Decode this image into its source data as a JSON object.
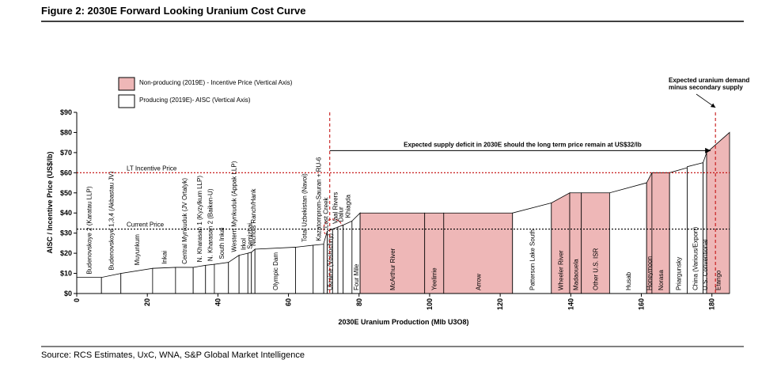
{
  "chart_data": {
    "type": "cost-curve",
    "title": "Figure 2: 2030E Forward Looking Uranium Cost Curve",
    "source": "Source: RCS Estimates, UxC, WNA, S&P Global Market Intelligence",
    "x_label": "2030E Uranium Production (Mlb U3O8)",
    "y_label": "AISC / Incentive Price (US$/lb)",
    "xlim": [
      0,
      185
    ],
    "xticks": [
      0,
      20,
      40,
      60,
      80,
      100,
      120,
      140,
      160,
      180
    ],
    "ylim": [
      0,
      90
    ],
    "yticks": [
      {
        "value": 0,
        "label": "$0"
      },
      {
        "value": 10,
        "label": "$10"
      },
      {
        "value": 20,
        "label": "$20"
      },
      {
        "value": 30,
        "label": "$30"
      },
      {
        "value": 40,
        "label": "$40"
      },
      {
        "value": 50,
        "label": "$50"
      },
      {
        "value": 60,
        "label": "$60"
      },
      {
        "value": 70,
        "label": "$70"
      },
      {
        "value": 80,
        "label": "$80"
      },
      {
        "value": 90,
        "label": "$90"
      }
    ],
    "legend": [
      {
        "name": "Non-producing (2019E) - Incentive Price (Vertical Axis)",
        "status": "non-producing",
        "color": "#eeb7b7"
      },
      {
        "name": "Producing (2019E)- AISC (Vertical Axis)",
        "status": "producing",
        "color": "#ffffff"
      }
    ],
    "segments": [
      {
        "label": "Budenovskoye 2 (Karatau LLP)",
        "x0": 0,
        "x1": 7,
        "y0": 8,
        "y1": 8,
        "status": "producing"
      },
      {
        "label": "Budenovskoye 1,3,4 (Akbastau JV)",
        "x0": 7,
        "x1": 12.5,
        "y0": 8,
        "y1": 10,
        "status": "producing"
      },
      {
        "label": "Muyunkum",
        "x0": 12.5,
        "x1": 21.5,
        "y0": 10,
        "y1": 12.5,
        "status": "producing"
      },
      {
        "label": "Inkai",
        "x0": 21.5,
        "x1": 28,
        "y0": 12.5,
        "y1": 13,
        "status": "producing"
      },
      {
        "label": "Central Mynkuduk (JV Ortalyk)",
        "x0": 28,
        "x1": 33,
        "y0": 13,
        "y1": 13,
        "status": "producing"
      },
      {
        "label": "N. Kharasan 1 (Kyzylkum LLP)",
        "x0": 33,
        "x1": 36.5,
        "y0": 13,
        "y1": 14,
        "status": "producing"
      },
      {
        "label": "N. Kharasan 2 (Baiken-U)",
        "x0": 36.5,
        "x1": 39,
        "y0": 14,
        "y1": 14.5,
        "status": "producing"
      },
      {
        "label": "South Inkai",
        "x0": 39,
        "x1": 43,
        "y0": 14.5,
        "y1": 15.5,
        "status": "producing"
      },
      {
        "label": "Western Mynkuduk (Appak LLP)",
        "x0": 43,
        "x1": 46,
        "y0": 15.5,
        "y1": 19,
        "status": "producing"
      },
      {
        "label": "Irkol",
        "x0": 46,
        "x1": 48.5,
        "y0": 19,
        "y1": 20,
        "status": "producing"
      },
      {
        "label": "Semizbai",
        "x0": 48.5,
        "x1": 49.5,
        "y0": 20,
        "y1": 20.5,
        "status": "producing"
      },
      {
        "label": "Nichols Ranch/Hank",
        "x0": 49.5,
        "x1": 50.5,
        "y0": 20.5,
        "y1": 22,
        "status": "producing"
      },
      {
        "label": "Olympic Dam",
        "x0": 50.5,
        "x1": 62,
        "y0": 22,
        "y1": 23,
        "status": "producing"
      },
      {
        "label": "Total Uzbekistan (Navoi)",
        "x0": 62,
        "x1": 67,
        "y0": 23,
        "y1": 24,
        "status": "producing"
      },
      {
        "label": "Kazatomprom-Sauran + RU-6",
        "x0": 67,
        "x1": 70,
        "y0": 24,
        "y1": 24.5,
        "status": "producing"
      },
      {
        "label": "Lost Creek",
        "x0": 70,
        "x1": 71,
        "y0": 25,
        "y1": 31,
        "status": "producing"
      },
      {
        "label": "Ukraine (Vostochny)",
        "x0": 71,
        "x1": 72.5,
        "y0": 31,
        "y1": 32,
        "status": "producing"
      },
      {
        "label": "Vaal Rivers",
        "x0": 72.5,
        "x1": 74,
        "y0": 32,
        "y1": 33,
        "status": "producing"
      },
      {
        "label": "Dalur",
        "x0": 74,
        "x1": 75.5,
        "y0": 33,
        "y1": 34,
        "status": "producing"
      },
      {
        "label": "Khiagda",
        "x0": 75.5,
        "x1": 78,
        "y0": 34,
        "y1": 36,
        "status": "producing"
      },
      {
        "label": "Four Mile",
        "x0": 78,
        "x1": 80.3,
        "y0": 36,
        "y1": 40,
        "status": "producing"
      },
      {
        "label": "McArthur River",
        "x0": 80.3,
        "x1": 98.6,
        "y0": 40,
        "y1": 40,
        "status": "non-producing"
      },
      {
        "label": "Yeelirrie",
        "x0": 98.6,
        "x1": 104,
        "y0": 40,
        "y1": 40,
        "status": "non-producing"
      },
      {
        "label": "Arrow",
        "x0": 104,
        "x1": 123.5,
        "y0": 40,
        "y1": 40,
        "status": "non-producing"
      },
      {
        "label": "Patterson Lake South",
        "x0": 123.5,
        "x1": 134.5,
        "y0": 40,
        "y1": 45,
        "status": "producing"
      },
      {
        "label": "Wheeler River",
        "x0": 134.5,
        "x1": 139.7,
        "y0": 45,
        "y1": 50,
        "status": "non-producing"
      },
      {
        "label": "Madaouela",
        "x0": 139.7,
        "x1": 143,
        "y0": 50,
        "y1": 50,
        "status": "non-producing"
      },
      {
        "label": "Other U.S. ISR",
        "x0": 143,
        "x1": 151,
        "y0": 50,
        "y1": 50,
        "status": "non-producing"
      },
      {
        "label": "Husab",
        "x0": 151,
        "x1": 161.5,
        "y0": 50,
        "y1": 55,
        "status": "producing"
      },
      {
        "label": "Honeymoon",
        "x0": 161.5,
        "x1": 163,
        "y0": 55,
        "y1": 60,
        "status": "non-producing"
      },
      {
        "label": "Norasa",
        "x0": 163,
        "x1": 168,
        "y0": 60,
        "y1": 60,
        "status": "non-producing"
      },
      {
        "label": "Priargunsky",
        "x0": 168,
        "x1": 173,
        "y0": 60,
        "y1": 62.5,
        "status": "producing"
      },
      {
        "label": "China (Various/Export)",
        "x0": 173,
        "x1": 177.5,
        "y0": 63,
        "y1": 65,
        "status": "producing"
      },
      {
        "label": "U.S. Conventional",
        "x0": 177.5,
        "x1": 178.5,
        "y0": 65,
        "y1": 70,
        "status": "producing"
      },
      {
        "label": "Etango",
        "x0": 178.5,
        "x1": 185,
        "y0": 70,
        "y1": 80,
        "status": "non-producing"
      }
    ],
    "price_lines": [
      {
        "label": "LT Incentive Price",
        "value": 60,
        "color": "#c00000"
      },
      {
        "label": "Current Price",
        "value": 32,
        "color": "#000000"
      }
    ],
    "deficit": {
      "text": "Expected supply deficit in 2030E should the long term price remain at US$32/lb",
      "x_from": 71.7,
      "x_to": 181,
      "y": 71,
      "color": "#c00000"
    },
    "demand_note": [
      "Expected uranium demand",
      "minus secondary supply"
    ]
  }
}
